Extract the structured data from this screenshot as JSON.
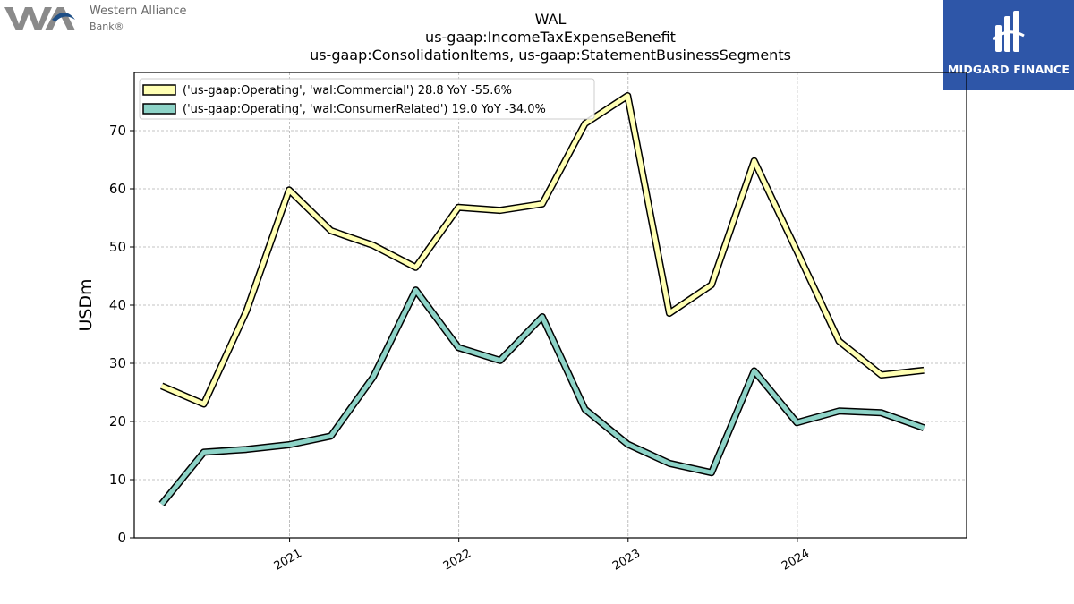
{
  "logos": {
    "left": {
      "name_line1": "Western Alliance",
      "name_line2": "Bank®"
    },
    "right": {
      "name": "MIDGARD FINANCE"
    }
  },
  "colors": {
    "commercial": "#ffffb3",
    "consumer": "#8dd3c7",
    "outline": "#000000",
    "grid": "#b0b0b0",
    "brand_blue": "#2e56a8"
  },
  "chart_data": {
    "type": "line",
    "title_lines": [
      "WAL",
      "us-gaap:IncomeTaxExpenseBenefit",
      "us-gaap:ConsolidationItems, us-gaap:StatementBusinessSegments"
    ],
    "xlabel": "",
    "ylabel": "USDm",
    "ylim": [
      0,
      80
    ],
    "yticks": [
      0,
      10,
      20,
      30,
      40,
      50,
      60,
      70
    ],
    "xlim": [
      "2020-02-01",
      "2024-12-31"
    ],
    "xticks": [
      {
        "date": "2021-01-01",
        "label": "2021"
      },
      {
        "date": "2022-01-01",
        "label": "2022"
      },
      {
        "date": "2023-01-01",
        "label": "2023"
      },
      {
        "date": "2024-01-01",
        "label": "2024"
      }
    ],
    "grid": true,
    "legend_position": "top-left",
    "x": [
      "2020-03-31",
      "2020-06-30",
      "2020-09-30",
      "2020-12-31",
      "2021-03-31",
      "2021-06-30",
      "2021-09-30",
      "2021-12-31",
      "2022-03-31",
      "2022-06-30",
      "2022-09-30",
      "2022-12-31",
      "2023-03-31",
      "2023-06-30",
      "2023-09-30",
      "2023-12-31",
      "2024-03-31",
      "2024-06-30",
      "2024-09-30"
    ],
    "series": [
      {
        "name": "('us-gaap:Operating', 'wal:Commercial') 28.8 YoY -55.6%",
        "color_key": "commercial",
        "values": [
          26.1,
          23.0,
          39.0,
          59.8,
          52.8,
          50.3,
          46.5,
          56.8,
          56.3,
          57.4,
          71.2,
          76.0,
          38.6,
          43.5,
          64.8,
          49.3,
          33.8,
          28.0,
          28.8
        ]
      },
      {
        "name": "('us-gaap:Operating', 'wal:ConsumerRelated') 19.0 YoY -34.0%",
        "color_key": "consumer",
        "values": [
          5.8,
          14.7,
          15.2,
          16.0,
          17.5,
          27.6,
          42.6,
          32.7,
          30.5,
          38.0,
          22.1,
          16.1,
          12.8,
          11.2,
          28.7,
          19.8,
          21.8,
          21.5,
          18.9
        ]
      }
    ]
  }
}
